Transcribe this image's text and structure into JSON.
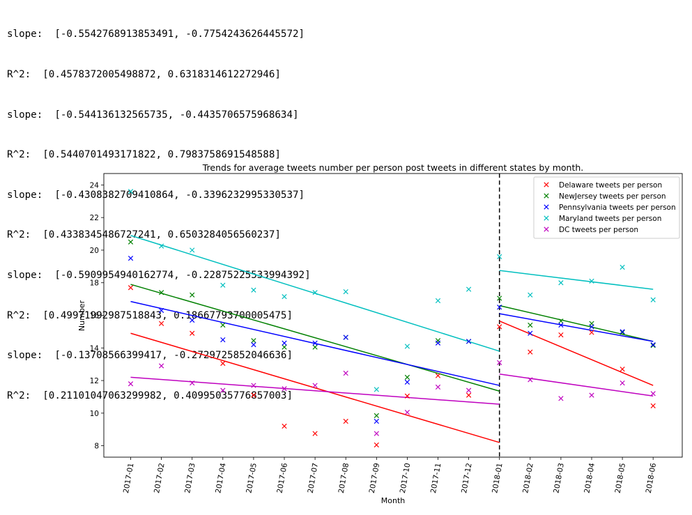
{
  "console_output": [
    "slope:  [-0.5542768913853491, -0.7754243626445572]",
    "R^2:  [0.4578372005498872, 0.6318314612272946]",
    "slope:  [-0.544136132565735, -0.4435706575968634]",
    "R^2:  [0.5440701493171822, 0.7983758691548588]",
    "slope:  [-0.4308382709410864, -0.3396232995330537]",
    "R^2:  [0.4338345486727241, 0.6503284056560237]",
    "slope:  [-0.5909954940162774, -0.22875225533994392]",
    "R^2:  [0.49971992987518843, 0.18667793700005475]",
    "slope:  [-0.13708566399417, -0.2729725852046636]",
    "R^2:  [0.21101047063299982, 0.40995035776857003]"
  ],
  "chart_data": {
    "type": "scatter",
    "title": "Trends for average tweets number per person post tweets in different states by month.",
    "xlabel": "Month",
    "ylabel": "Number",
    "categories": [
      "2017-01",
      "2017-02",
      "2017-03",
      "2017-04",
      "2017-05",
      "2017-06",
      "2017-07",
      "2017-08",
      "2017-09",
      "2017-10",
      "2017-11",
      "2017-12",
      "2018-01",
      "2018-02",
      "2018-03",
      "2018-04",
      "2018-05",
      "2018-06"
    ],
    "yticks": [
      8,
      10,
      12,
      14,
      16,
      18,
      20,
      22,
      24
    ],
    "ylim": [
      7.3,
      24.7
    ],
    "divider_at": "2018-01",
    "legend_position": "top-right",
    "marker": "x",
    "series": [
      {
        "name": "Delaware tweets per person",
        "color": "#ff0000",
        "values": [
          17.7,
          15.5,
          14.9,
          13.05,
          11.1,
          9.2,
          8.75,
          9.5,
          8.05,
          11.05,
          12.3,
          11.1,
          15.3,
          13.75,
          14.8,
          14.95,
          12.7,
          10.45
        ],
        "trend": [
          [
            14.9,
            8.2
          ],
          [
            15.65,
            11.7
          ]
        ]
      },
      {
        "name": "NewJersey tweets per person",
        "color": "#008000",
        "values": [
          20.5,
          17.4,
          17.25,
          15.4,
          14.45,
          14.05,
          14.05,
          14.65,
          9.85,
          12.2,
          14.45,
          14.4,
          17.05,
          15.4,
          15.65,
          15.5,
          14.95,
          14.15
        ],
        "trend": [
          [
            17.9,
            11.35
          ],
          [
            16.6,
            14.4
          ]
        ]
      },
      {
        "name": "Pennsylvania tweets per person",
        "color": "#0000ff",
        "values": [
          19.5,
          16.3,
          15.7,
          14.5,
          14.2,
          14.3,
          14.3,
          14.65,
          9.5,
          11.9,
          14.3,
          14.4,
          16.5,
          14.9,
          15.4,
          15.3,
          15.0,
          14.2
        ],
        "trend": [
          [
            16.85,
            11.7
          ],
          [
            16.1,
            14.4
          ]
        ]
      },
      {
        "name": "Maryland tweets per person",
        "color": "#00bfbf",
        "values": [
          23.6,
          20.25,
          20.0,
          17.85,
          17.55,
          17.15,
          17.4,
          17.45,
          11.45,
          14.1,
          16.9,
          17.6,
          19.6,
          17.25,
          18.0,
          18.1,
          18.95,
          16.95
        ],
        "trend": [
          [
            20.9,
            13.8
          ],
          [
            18.75,
            17.6
          ]
        ]
      },
      {
        "name": "DC tweets per person",
        "color": "#bf00bf",
        "values": [
          11.8,
          12.9,
          11.85,
          11.4,
          11.7,
          11.5,
          11.7,
          12.45,
          8.75,
          10.05,
          11.6,
          11.4,
          13.1,
          12.05,
          10.9,
          11.1,
          11.85,
          11.2
        ],
        "trend": [
          [
            12.2,
            10.55
          ],
          [
            12.4,
            11.05
          ]
        ]
      }
    ]
  }
}
